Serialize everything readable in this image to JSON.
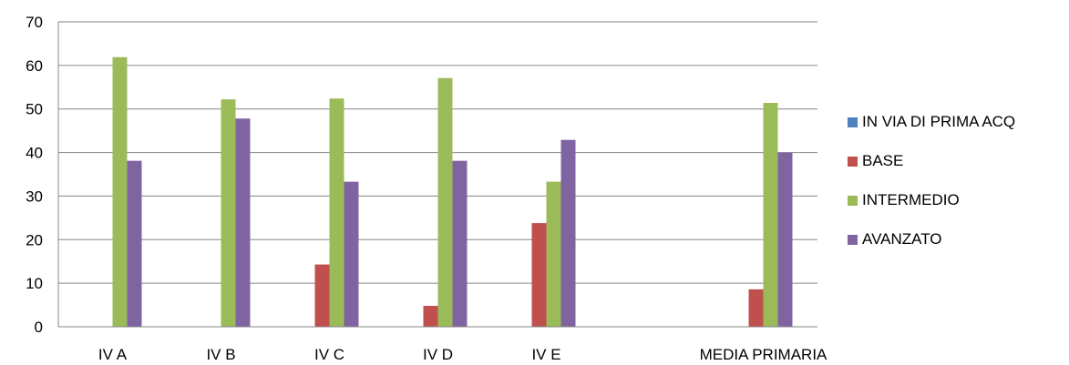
{
  "chart_data": {
    "type": "bar",
    "categories": [
      "IV A",
      "IV B",
      "IV C",
      "IV D",
      "IV E",
      "",
      "MEDIA PRIMARIA"
    ],
    "series": [
      {
        "name": "IN VIA DI PRIMA ACQ",
        "color": "#4f81bd",
        "values": [
          0,
          0,
          0,
          0,
          0,
          null,
          0
        ]
      },
      {
        "name": "BASE",
        "color": "#c0504d",
        "values": [
          0,
          0,
          14.3,
          4.8,
          23.8,
          null,
          8.6
        ]
      },
      {
        "name": "INTERMEDIO",
        "color": "#9bbb59",
        "values": [
          61.9,
          52.2,
          52.4,
          57.1,
          33.3,
          null,
          51.4
        ]
      },
      {
        "name": "AVANZATO",
        "color": "#8064a2",
        "values": [
          38.1,
          47.8,
          33.3,
          38.1,
          42.9,
          null,
          40.0
        ]
      }
    ],
    "ylim": [
      0,
      70
    ],
    "yticks": [
      0,
      10,
      20,
      30,
      40,
      50,
      60,
      70
    ],
    "grid": true,
    "legend": "right"
  }
}
